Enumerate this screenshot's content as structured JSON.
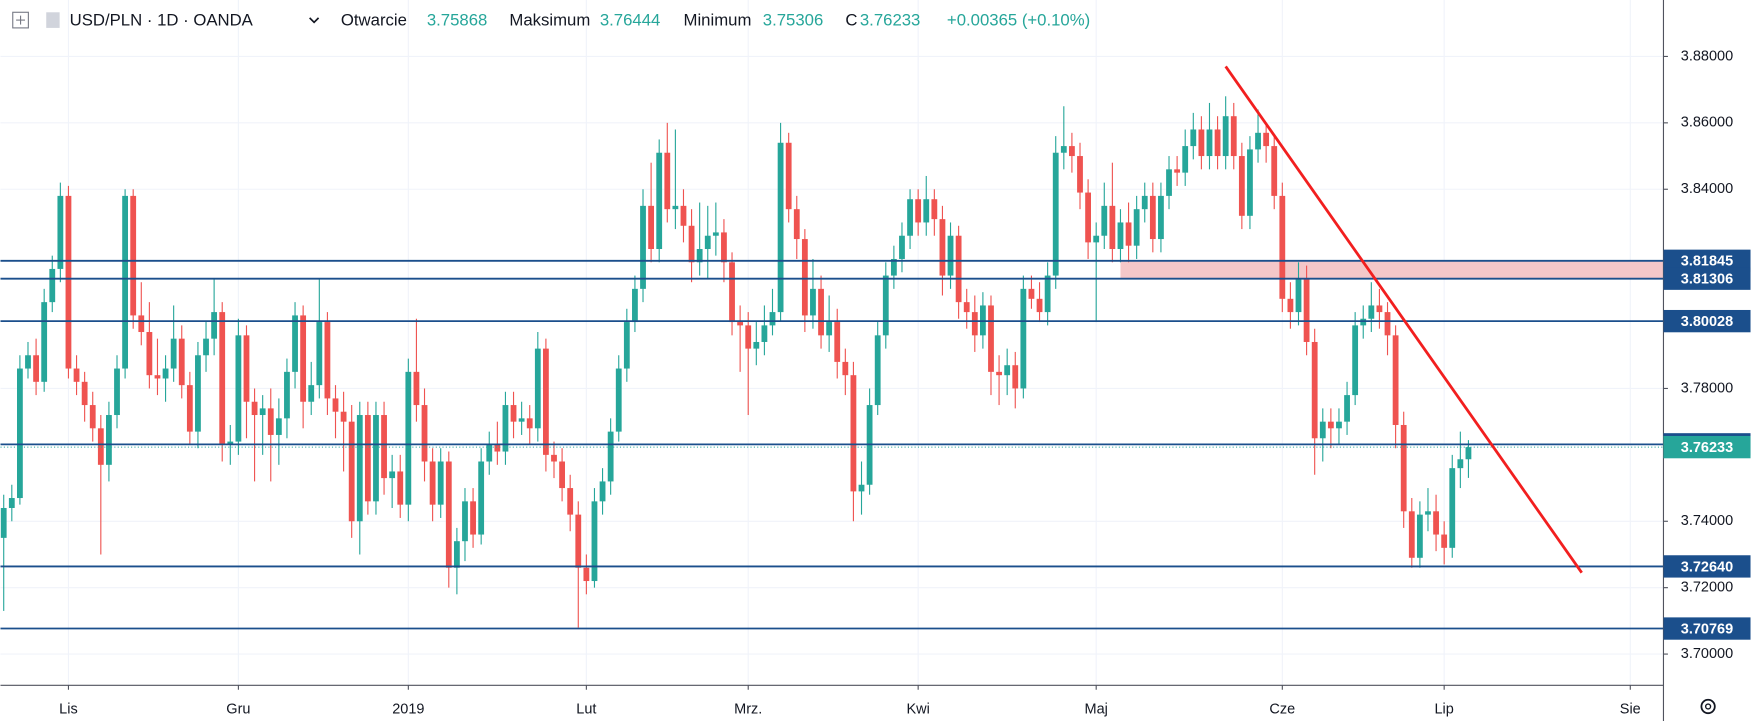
{
  "chart_data": {
    "type": "candlestick",
    "title": "USD/PLN · 1D · OANDA",
    "header": {
      "open_label": "Otwarcie",
      "high_label": "Maksimum",
      "low_label": "Minimum",
      "close_label": "C",
      "change": "+0.00365 (+0.10%)"
    },
    "candles": [
      [
        3.735,
        3.748,
        3.713,
        3.744
      ],
      [
        3.744,
        3.751,
        3.74,
        3.747
      ],
      [
        3.747,
        3.79,
        3.745,
        3.786
      ],
      [
        3.786,
        3.794,
        3.783,
        3.79
      ],
      [
        3.79,
        3.795,
        3.778,
        3.782
      ],
      [
        3.782,
        3.81,
        3.779,
        3.806
      ],
      [
        3.806,
        3.82,
        3.803,
        3.816
      ],
      [
        3.816,
        3.842,
        3.812,
        3.838
      ],
      [
        3.838,
        3.841,
        3.783,
        3.786
      ],
      [
        3.786,
        3.79,
        3.778,
        3.782
      ],
      [
        3.782,
        3.785,
        3.77,
        3.775
      ],
      [
        3.775,
        3.779,
        3.764,
        3.768
      ],
      [
        3.768,
        3.772,
        3.73,
        3.757
      ],
      [
        3.757,
        3.776,
        3.752,
        3.772
      ],
      [
        3.772,
        3.79,
        3.768,
        3.786
      ],
      [
        3.786,
        3.84,
        3.783,
        3.838
      ],
      [
        3.838,
        3.84,
        3.798,
        3.802
      ],
      [
        3.802,
        3.812,
        3.793,
        3.797
      ],
      [
        3.797,
        3.806,
        3.78,
        3.784
      ],
      [
        3.784,
        3.795,
        3.778,
        3.783
      ],
      [
        3.783,
        3.79,
        3.776,
        3.786
      ],
      [
        3.786,
        3.805,
        3.782,
        3.795
      ],
      [
        3.795,
        3.799,
        3.777,
        3.781
      ],
      [
        3.781,
        3.785,
        3.763,
        3.767
      ],
      [
        3.767,
        3.794,
        3.762,
        3.79
      ],
      [
        3.79,
        3.8,
        3.785,
        3.795
      ],
      [
        3.795,
        3.813,
        3.79,
        3.803
      ],
      [
        3.803,
        3.806,
        3.758,
        3.763
      ],
      [
        3.763,
        3.769,
        3.757,
        3.764
      ],
      [
        3.764,
        3.801,
        3.76,
        3.796
      ],
      [
        3.796,
        3.799,
        3.765,
        3.776
      ],
      [
        3.776,
        3.78,
        3.752,
        3.772
      ],
      [
        3.772,
        3.778,
        3.76,
        3.774
      ],
      [
        3.774,
        3.78,
        3.752,
        3.766
      ],
      [
        3.766,
        3.777,
        3.757,
        3.771
      ],
      [
        3.771,
        3.789,
        3.765,
        3.785
      ],
      [
        3.785,
        3.806,
        3.78,
        3.802
      ],
      [
        3.802,
        3.805,
        3.768,
        3.776
      ],
      [
        3.776,
        3.788,
        3.772,
        3.781
      ],
      [
        3.781,
        3.813,
        3.777,
        3.8
      ],
      [
        3.8,
        3.803,
        3.772,
        3.777
      ],
      [
        3.777,
        3.781,
        3.765,
        3.773
      ],
      [
        3.773,
        3.779,
        3.755,
        3.77
      ],
      [
        3.77,
        3.775,
        3.735,
        3.74
      ],
      [
        3.74,
        3.776,
        3.73,
        3.772
      ],
      [
        3.772,
        3.776,
        3.742,
        3.746
      ],
      [
        3.746,
        3.776,
        3.742,
        3.772
      ],
      [
        3.772,
        3.776,
        3.748,
        3.753
      ],
      [
        3.753,
        3.76,
        3.744,
        3.755
      ],
      [
        3.755,
        3.76,
        3.741,
        3.745
      ],
      [
        3.745,
        3.789,
        3.74,
        3.785
      ],
      [
        3.785,
        3.801,
        3.77,
        3.775
      ],
      [
        3.775,
        3.78,
        3.752,
        3.758
      ],
      [
        3.758,
        3.762,
        3.74,
        3.745
      ],
      [
        3.745,
        3.762,
        3.741,
        3.758
      ],
      [
        3.758,
        3.761,
        3.72,
        3.726
      ],
      [
        3.726,
        3.738,
        3.718,
        3.734
      ],
      [
        3.734,
        3.75,
        3.728,
        3.746
      ],
      [
        3.746,
        3.75,
        3.732,
        3.736
      ],
      [
        3.736,
        3.762,
        3.733,
        3.758
      ],
      [
        3.758,
        3.767,
        3.754,
        3.763
      ],
      [
        3.763,
        3.77,
        3.757,
        3.761
      ],
      [
        3.761,
        3.779,
        3.757,
        3.775
      ],
      [
        3.775,
        3.779,
        3.765,
        3.77
      ],
      [
        3.77,
        3.776,
        3.766,
        3.771
      ],
      [
        3.771,
        3.775,
        3.763,
        3.768
      ],
      [
        3.768,
        3.797,
        3.764,
        3.792
      ],
      [
        3.792,
        3.795,
        3.755,
        3.76
      ],
      [
        3.76,
        3.764,
        3.753,
        3.758
      ],
      [
        3.758,
        3.762,
        3.746,
        3.75
      ],
      [
        3.75,
        3.754,
        3.737,
        3.742
      ],
      [
        3.742,
        3.746,
        3.708,
        3.726
      ],
      [
        3.726,
        3.73,
        3.718,
        3.722
      ],
      [
        3.722,
        3.75,
        3.72,
        3.746
      ],
      [
        3.746,
        3.756,
        3.742,
        3.752
      ],
      [
        3.752,
        3.771,
        3.748,
        3.767
      ],
      [
        3.767,
        3.79,
        3.764,
        3.786
      ],
      [
        3.786,
        3.804,
        3.782,
        3.8
      ],
      [
        3.8,
        3.814,
        3.797,
        3.81
      ],
      [
        3.81,
        3.84,
        3.806,
        3.835
      ],
      [
        3.835,
        3.848,
        3.818,
        3.822
      ],
      [
        3.822,
        3.855,
        3.818,
        3.851
      ],
      [
        3.851,
        3.86,
        3.83,
        3.834
      ],
      [
        3.834,
        3.858,
        3.828,
        3.835
      ],
      [
        3.835,
        3.84,
        3.824,
        3.829
      ],
      [
        3.829,
        3.834,
        3.812,
        3.818
      ],
      [
        3.818,
        3.836,
        3.814,
        3.822
      ],
      [
        3.822,
        3.835,
        3.813,
        3.826
      ],
      [
        3.826,
        3.836,
        3.82,
        3.827
      ],
      [
        3.827,
        3.831,
        3.812,
        3.818
      ],
      [
        3.818,
        3.821,
        3.796,
        3.8
      ],
      [
        3.8,
        3.805,
        3.785,
        3.799
      ],
      [
        3.799,
        3.803,
        3.772,
        3.792
      ],
      [
        3.792,
        3.8,
        3.787,
        3.794
      ],
      [
        3.794,
        3.805,
        3.79,
        3.799
      ],
      [
        3.799,
        3.81,
        3.796,
        3.803
      ],
      [
        3.803,
        3.86,
        3.8,
        3.854
      ],
      [
        3.854,
        3.857,
        3.83,
        3.834
      ],
      [
        3.834,
        3.838,
        3.819,
        3.825
      ],
      [
        3.825,
        3.828,
        3.797,
        3.802
      ],
      [
        3.802,
        3.819,
        3.798,
        3.81
      ],
      [
        3.81,
        3.814,
        3.792,
        3.796
      ],
      [
        3.796,
        3.808,
        3.791,
        3.8
      ],
      [
        3.8,
        3.804,
        3.783,
        3.788
      ],
      [
        3.788,
        3.792,
        3.778,
        3.784
      ],
      [
        3.784,
        3.788,
        3.74,
        3.749
      ],
      [
        3.749,
        3.758,
        3.742,
        3.751
      ],
      [
        3.751,
        3.78,
        3.748,
        3.775
      ],
      [
        3.775,
        3.8,
        3.772,
        3.796
      ],
      [
        3.796,
        3.818,
        3.792,
        3.814
      ],
      [
        3.814,
        3.823,
        3.81,
        3.819
      ],
      [
        3.819,
        3.83,
        3.815,
        3.826
      ],
      [
        3.826,
        3.84,
        3.822,
        3.837
      ],
      [
        3.837,
        3.84,
        3.826,
        3.83
      ],
      [
        3.83,
        3.844,
        3.826,
        3.837
      ],
      [
        3.837,
        3.84,
        3.826,
        3.831
      ],
      [
        3.831,
        3.835,
        3.808,
        3.814
      ],
      [
        3.814,
        3.83,
        3.81,
        3.826
      ],
      [
        3.826,
        3.829,
        3.801,
        3.806
      ],
      [
        3.806,
        3.81,
        3.798,
        3.803
      ],
      [
        3.803,
        3.808,
        3.791,
        3.796
      ],
      [
        3.796,
        3.809,
        3.792,
        3.805
      ],
      [
        3.805,
        3.808,
        3.778,
        3.785
      ],
      [
        3.785,
        3.79,
        3.775,
        3.784
      ],
      [
        3.784,
        3.792,
        3.778,
        3.787
      ],
      [
        3.787,
        3.791,
        3.774,
        3.78
      ],
      [
        3.78,
        3.814,
        3.777,
        3.81
      ],
      [
        3.81,
        3.814,
        3.804,
        3.807
      ],
      [
        3.807,
        3.812,
        3.8,
        3.803
      ],
      [
        3.803,
        3.818,
        3.799,
        3.814
      ],
      [
        3.814,
        3.856,
        3.81,
        3.851
      ],
      [
        3.851,
        3.865,
        3.846,
        3.853
      ],
      [
        3.853,
        3.857,
        3.845,
        3.85
      ],
      [
        3.85,
        3.854,
        3.834,
        3.839
      ],
      [
        3.839,
        3.843,
        3.819,
        3.824
      ],
      [
        3.824,
        3.83,
        3.8,
        3.826
      ],
      [
        3.826,
        3.842,
        3.822,
        3.835
      ],
      [
        3.835,
        3.848,
        3.818,
        3.822
      ],
      [
        3.822,
        3.834,
        3.818,
        3.83
      ],
      [
        3.83,
        3.836,
        3.818,
        3.823
      ],
      [
        3.823,
        3.838,
        3.819,
        3.834
      ],
      [
        3.834,
        3.842,
        3.83,
        3.838
      ],
      [
        3.838,
        3.842,
        3.821,
        3.825
      ],
      [
        3.825,
        3.842,
        3.821,
        3.838
      ],
      [
        3.838,
        3.85,
        3.834,
        3.846
      ],
      [
        3.846,
        3.85,
        3.841,
        3.845
      ],
      [
        3.845,
        3.858,
        3.841,
        3.853
      ],
      [
        3.853,
        3.863,
        3.849,
        3.858
      ],
      [
        3.858,
        3.862,
        3.846,
        3.85
      ],
      [
        3.85,
        3.866,
        3.846,
        3.858
      ],
      [
        3.858,
        3.862,
        3.846,
        3.85
      ],
      [
        3.85,
        3.868,
        3.846,
        3.862
      ],
      [
        3.862,
        3.866,
        3.846,
        3.85
      ],
      [
        3.85,
        3.854,
        3.828,
        3.832
      ],
      [
        3.832,
        3.856,
        3.828,
        3.852
      ],
      [
        3.852,
        3.864,
        3.848,
        3.857
      ],
      [
        3.857,
        3.86,
        3.848,
        3.853
      ],
      [
        3.853,
        3.856,
        3.834,
        3.838
      ],
      [
        3.838,
        3.842,
        3.803,
        3.807
      ],
      [
        3.807,
        3.812,
        3.798,
        3.803
      ],
      [
        3.803,
        3.818,
        3.799,
        3.813
      ],
      [
        3.813,
        3.817,
        3.79,
        3.794
      ],
      [
        3.794,
        3.798,
        3.754,
        3.765
      ],
      [
        3.765,
        3.774,
        3.758,
        3.77
      ],
      [
        3.77,
        3.774,
        3.762,
        3.768
      ],
      [
        3.768,
        3.774,
        3.763,
        3.77
      ],
      [
        3.77,
        3.782,
        3.766,
        3.778
      ],
      [
        3.778,
        3.803,
        3.775,
        3.799
      ],
      [
        3.799,
        3.805,
        3.795,
        3.801
      ],
      [
        3.801,
        3.812,
        3.797,
        3.805
      ],
      [
        3.805,
        3.81,
        3.798,
        3.803
      ],
      [
        3.803,
        3.806,
        3.79,
        3.796
      ],
      [
        3.796,
        3.799,
        3.762,
        3.769
      ],
      [
        3.769,
        3.773,
        3.738,
        3.743
      ],
      [
        3.743,
        3.747,
        3.726,
        3.729
      ],
      [
        3.729,
        3.746,
        3.726,
        3.742
      ],
      [
        3.742,
        3.75,
        3.737,
        3.743
      ],
      [
        3.743,
        3.748,
        3.731,
        3.736
      ],
      [
        3.736,
        3.74,
        3.727,
        3.732
      ],
      [
        3.732,
        3.76,
        3.729,
        3.756
      ],
      [
        3.756,
        3.767,
        3.75,
        3.75868
      ],
      [
        3.75868,
        3.76444,
        3.75306,
        3.76233
      ]
    ],
    "up_color": "#26a69a",
    "down_color": "#ef5350",
    "xlim": [
      -0.4,
      205.1
    ],
    "xticks": [
      {
        "value": 8,
        "label": "Lis"
      },
      {
        "value": 29,
        "label": "Gru"
      },
      {
        "value": 50,
        "label": "2019"
      },
      {
        "value": 72,
        "label": "Lut"
      },
      {
        "value": 92,
        "label": "Mrz."
      },
      {
        "value": 113,
        "label": "Kwi"
      },
      {
        "value": 135,
        "label": "Maj"
      },
      {
        "value": 158,
        "label": "Cze"
      },
      {
        "value": 178,
        "label": "Lip"
      },
      {
        "value": 201,
        "label": "Sie"
      }
    ],
    "ylim": [
      3.6906,
      3.897
    ],
    "yticks": [
      {
        "value": 3.7,
        "label": "3.70000"
      },
      {
        "value": 3.72,
        "label": "3.72000"
      },
      {
        "value": 3.74,
        "label": "3.74000"
      },
      {
        "value": 3.78,
        "label": "3.78000"
      },
      {
        "value": 3.84,
        "label": "3.84000"
      },
      {
        "value": 3.86,
        "label": "3.86000"
      },
      {
        "value": 3.88,
        "label": "3.88000"
      }
    ],
    "grid": true,
    "levels": [
      3.81845,
      3.81306,
      3.80028,
      3.76317,
      {
        "value": 3.7264,
        "label": "3.72640"
      },
      3.70769
    ],
    "level_color": "#1b4f8c",
    "zone": {
      "x": 138,
      "y": [
        3.81845,
        3.81306
      ],
      "color": "#f4c7c9"
    },
    "trendline": {
      "x": [
        151,
        195
      ],
      "y": [
        3.877,
        3.7245
      ],
      "color": "#f21f1f"
    }
  }
}
